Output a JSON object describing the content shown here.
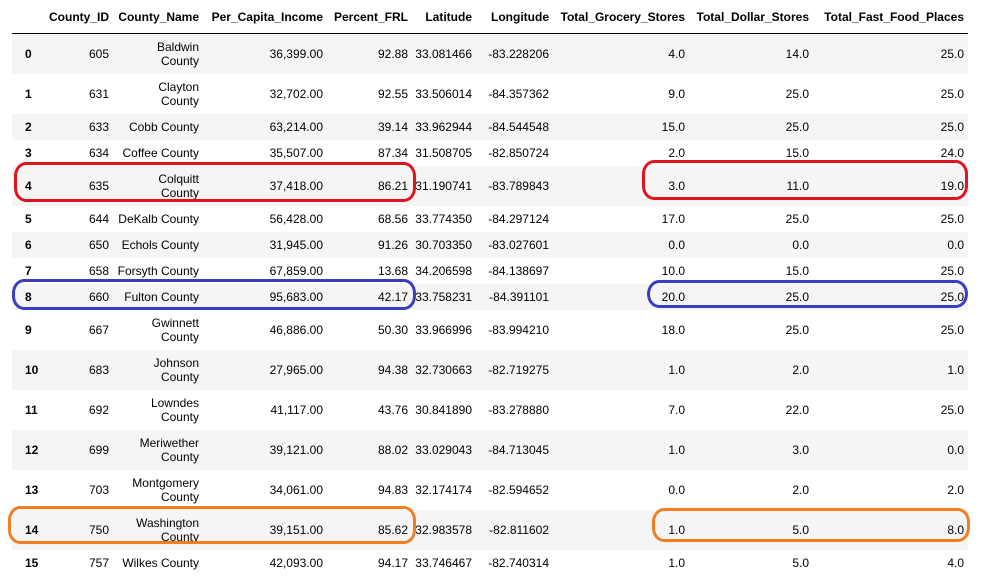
{
  "columns": [
    "",
    "County_ID",
    "County_Name",
    "Per_Capita_Income",
    "Percent_FRL",
    "Latitude",
    "Longitude",
    "Total_Grocery_Stores",
    "Total_Dollar_Stores",
    "Total_Fast_Food_Places"
  ],
  "rows": [
    {
      "idx": "0",
      "id": "605",
      "name1": "Baldwin",
      "name2": "County",
      "income": "36,399.00",
      "frl": "92.88",
      "lat": "33.081466",
      "lon": "-83.228206",
      "grocery": "4.0",
      "dollar": "14.0",
      "fast": "25.0"
    },
    {
      "idx": "1",
      "id": "631",
      "name1": "Clayton",
      "name2": "County",
      "income": "32,702.00",
      "frl": "92.55",
      "lat": "33.506014",
      "lon": "-84.357362",
      "grocery": "9.0",
      "dollar": "25.0",
      "fast": "25.0"
    },
    {
      "idx": "2",
      "id": "633",
      "name1": "Cobb County",
      "name2": "",
      "income": "63,214.00",
      "frl": "39.14",
      "lat": "33.962944",
      "lon": "-84.544548",
      "grocery": "15.0",
      "dollar": "25.0",
      "fast": "25.0"
    },
    {
      "idx": "3",
      "id": "634",
      "name1": "Coffee County",
      "name2": "",
      "income": "35,507.00",
      "frl": "87.34",
      "lat": "31.508705",
      "lon": "-82.850724",
      "grocery": "2.0",
      "dollar": "15.0",
      "fast": "24.0"
    },
    {
      "idx": "4",
      "id": "635",
      "name1": "Colquitt",
      "name2": "County",
      "income": "37,418.00",
      "frl": "86.21",
      "lat": "31.190741",
      "lon": "-83.789843",
      "grocery": "3.0",
      "dollar": "11.0",
      "fast": "19.0"
    },
    {
      "idx": "5",
      "id": "644",
      "name1": "DeKalb County",
      "name2": "",
      "income": "56,428.00",
      "frl": "68.56",
      "lat": "33.774350",
      "lon": "-84.297124",
      "grocery": "17.0",
      "dollar": "25.0",
      "fast": "25.0"
    },
    {
      "idx": "6",
      "id": "650",
      "name1": "Echols County",
      "name2": "",
      "income": "31,945.00",
      "frl": "91.26",
      "lat": "30.703350",
      "lon": "-83.027601",
      "grocery": "0.0",
      "dollar": "0.0",
      "fast": "0.0"
    },
    {
      "idx": "7",
      "id": "658",
      "name1": "Forsyth County",
      "name2": "",
      "income": "67,859.00",
      "frl": "13.68",
      "lat": "34.206598",
      "lon": "-84.138697",
      "grocery": "10.0",
      "dollar": "15.0",
      "fast": "25.0"
    },
    {
      "idx": "8",
      "id": "660",
      "name1": "Fulton County",
      "name2": "",
      "income": "95,683.00",
      "frl": "42.17",
      "lat": "33.758231",
      "lon": "-84.391101",
      "grocery": "20.0",
      "dollar": "25.0",
      "fast": "25.0"
    },
    {
      "idx": "9",
      "id": "667",
      "name1": "Gwinnett",
      "name2": "County",
      "income": "46,886.00",
      "frl": "50.30",
      "lat": "33.966996",
      "lon": "-83.994210",
      "grocery": "18.0",
      "dollar": "25.0",
      "fast": "25.0"
    },
    {
      "idx": "10",
      "id": "683",
      "name1": "Johnson",
      "name2": "County",
      "income": "27,965.00",
      "frl": "94.38",
      "lat": "32.730663",
      "lon": "-82.719275",
      "grocery": "1.0",
      "dollar": "2.0",
      "fast": "1.0"
    },
    {
      "idx": "11",
      "id": "692",
      "name1": "Lowndes",
      "name2": "County",
      "income": "41,117.00",
      "frl": "43.76",
      "lat": "30.841890",
      "lon": "-83.278880",
      "grocery": "7.0",
      "dollar": "22.0",
      "fast": "25.0"
    },
    {
      "idx": "12",
      "id": "699",
      "name1": "Meriwether",
      "name2": "County",
      "income": "39,121.00",
      "frl": "88.02",
      "lat": "33.029043",
      "lon": "-84.713045",
      "grocery": "1.0",
      "dollar": "3.0",
      "fast": "0.0"
    },
    {
      "idx": "13",
      "id": "703",
      "name1": "Montgomery",
      "name2": "County",
      "income": "34,061.00",
      "frl": "94.83",
      "lat": "32.174174",
      "lon": "-82.594652",
      "grocery": "0.0",
      "dollar": "2.0",
      "fast": "2.0"
    },
    {
      "idx": "14",
      "id": "750",
      "name1": "Washington",
      "name2": "County",
      "income": "39,151.00",
      "frl": "85.62",
      "lat": "32.983578",
      "lon": "-82.811602",
      "grocery": "1.0",
      "dollar": "5.0",
      "fast": "8.0"
    },
    {
      "idx": "15",
      "id": "757",
      "name1": "Wilkes County",
      "name2": "",
      "income": "42,093.00",
      "frl": "94.17",
      "lat": "33.746467",
      "lon": "-82.740314",
      "grocery": "1.0",
      "dollar": "5.0",
      "fast": "4.0"
    }
  ],
  "highlight_colors": {
    "red": "#e0141e",
    "blue": "#3a3fc0",
    "orange": "#f07f22"
  }
}
